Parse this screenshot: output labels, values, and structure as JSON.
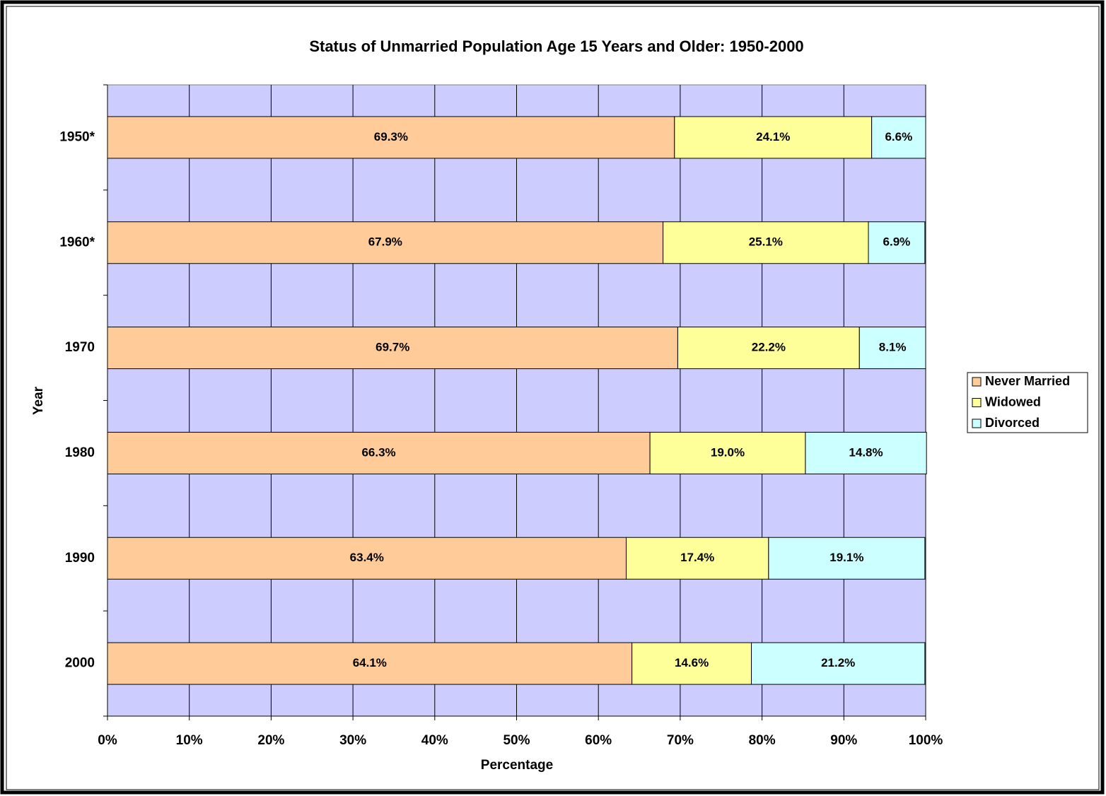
{
  "chart_data": {
    "type": "stacked-bar-horizontal",
    "title": "Status of Unmarried Population Age 15 Years and Older: 1950-2000",
    "x_label": "Percentage",
    "y_label": "Year",
    "categories": [
      "1950*",
      "1960*",
      "1970",
      "1980",
      "1990",
      "2000"
    ],
    "series": [
      {
        "name": "Never Married",
        "color": "#ffcc99",
        "values": [
          69.3,
          67.9,
          69.7,
          66.3,
          63.4,
          64.1
        ],
        "value_labels": [
          "69.3%",
          "67.9%",
          "69.7%",
          "66.3%",
          "63.4%",
          "64.1%"
        ]
      },
      {
        "name": "Widowed",
        "color": "#ffff99",
        "values": [
          24.1,
          25.1,
          22.2,
          19.0,
          17.4,
          14.6
        ],
        "value_labels": [
          "24.1%",
          "25.1%",
          "22.2%",
          "19.0%",
          "17.4%",
          "14.6%"
        ]
      },
      {
        "name": "Divorced",
        "color": "#ccffff",
        "values": [
          6.6,
          6.9,
          8.1,
          14.8,
          19.1,
          21.2
        ],
        "value_labels": [
          "6.6%",
          "6.9%",
          "8.1%",
          "14.8%",
          "19.1%",
          "21.2%"
        ]
      }
    ],
    "xlim": [
      0,
      100
    ],
    "xticks": [
      {
        "value": 0,
        "label": "0%"
      },
      {
        "value": 10,
        "label": "10%"
      },
      {
        "value": 20,
        "label": "20%"
      },
      {
        "value": 30,
        "label": "30%"
      },
      {
        "value": 40,
        "label": "40%"
      },
      {
        "value": 50,
        "label": "50%"
      },
      {
        "value": 60,
        "label": "60%"
      },
      {
        "value": 70,
        "label": "70%"
      },
      {
        "value": 80,
        "label": "80%"
      },
      {
        "value": 90,
        "label": "90%"
      },
      {
        "value": 100,
        "label": "100%"
      }
    ],
    "grid": true,
    "plot_background": "#ccccff",
    "legend": "right"
  }
}
